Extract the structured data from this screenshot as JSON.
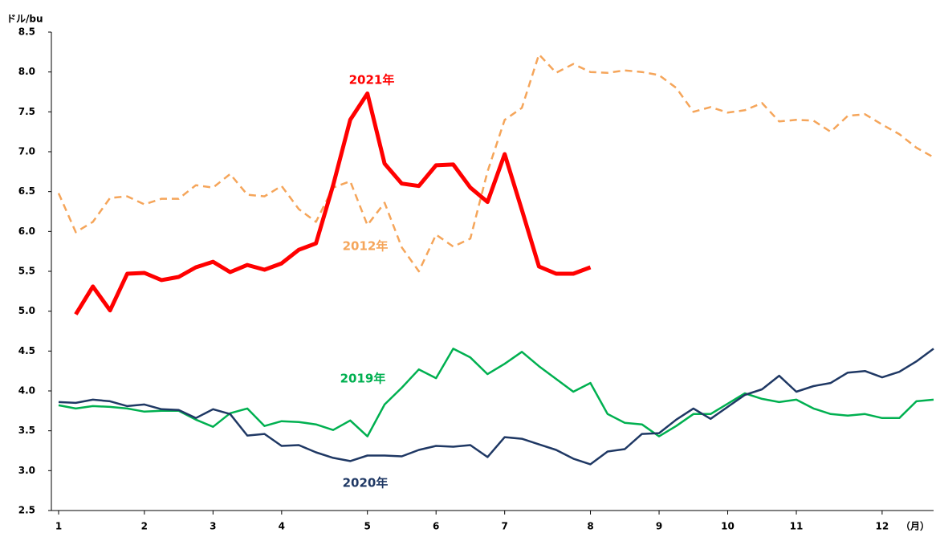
{
  "chart_data": {
    "type": "line",
    "y_label": "ドル/bu",
    "x_label": "（月）",
    "categories": [
      "1",
      null,
      null,
      null,
      null,
      "2",
      null,
      null,
      null,
      "3",
      null,
      null,
      null,
      "4",
      null,
      null,
      null,
      null,
      "5",
      null,
      null,
      null,
      "6",
      null,
      null,
      null,
      "7",
      null,
      null,
      null,
      null,
      "8",
      null,
      null,
      null,
      "9",
      null,
      null,
      null,
      "10",
      null,
      null,
      null,
      "11",
      null,
      null,
      null,
      null,
      "12",
      null,
      null,
      null
    ],
    "ylim": [
      2.5,
      8.5
    ],
    "yticks": [
      {
        "value": 2.5,
        "label": "2.5"
      },
      {
        "value": 3,
        "label": "3.0"
      },
      {
        "value": 3.5,
        "label": "3.5"
      },
      {
        "value": 4,
        "label": "4.0"
      },
      {
        "value": 4.5,
        "label": "4.5"
      },
      {
        "value": 5,
        "label": "5.0"
      },
      {
        "value": 5.5,
        "label": "5.5"
      },
      {
        "value": 6,
        "label": "6.0"
      },
      {
        "value": 6.5,
        "label": "6.5"
      },
      {
        "value": 7,
        "label": "7.0"
      },
      {
        "value": 7.5,
        "label": "7.5"
      },
      {
        "value": 8,
        "label": "8.0"
      },
      {
        "value": 8.5,
        "label": "8.5"
      }
    ],
    "grid": false,
    "series": [
      {
        "name": "2012年",
        "color": "#f5a55a",
        "dashed": true,
        "values": [
          6.48,
          5.99,
          6.12,
          6.42,
          6.44,
          6.34,
          6.41,
          6.41,
          6.58,
          6.55,
          6.72,
          6.46,
          6.44,
          6.57,
          6.28,
          6.12,
          6.55,
          6.63,
          6.08,
          6.36,
          5.8,
          5.5,
          5.96,
          5.81,
          5.91,
          6.75,
          7.4,
          7.55,
          8.22,
          7.99,
          8.1,
          8.0,
          7.99,
          8.02,
          8.0,
          7.96,
          7.8,
          7.5,
          7.56,
          7.49,
          7.52,
          7.61,
          7.38,
          7.4,
          7.39,
          7.25,
          7.45,
          7.47,
          7.34,
          7.22,
          7.05,
          6.93
        ]
      },
      {
        "name": "2019年",
        "color": "#00b050",
        "values": [
          3.82,
          3.78,
          3.81,
          3.8,
          3.78,
          3.74,
          3.75,
          3.75,
          3.64,
          3.55,
          3.72,
          3.78,
          3.56,
          3.62,
          3.61,
          3.58,
          3.51,
          3.63,
          3.43,
          3.83,
          4.04,
          4.27,
          4.16,
          4.53,
          4.42,
          4.21,
          4.34,
          4.49,
          4.31,
          4.15,
          3.99,
          4.1,
          3.71,
          3.6,
          3.58,
          3.43,
          3.56,
          3.71,
          3.71,
          3.84,
          3.97,
          3.9,
          3.86,
          3.89,
          3.78,
          3.71,
          3.69,
          3.71,
          3.66,
          3.66,
          3.87,
          3.89
        ]
      },
      {
        "name": "2020年",
        "color": "#1f3864",
        "values": [
          3.86,
          3.85,
          3.89,
          3.87,
          3.81,
          3.83,
          3.77,
          3.76,
          3.66,
          3.77,
          3.71,
          3.44,
          3.46,
          3.31,
          3.32,
          3.23,
          3.16,
          3.12,
          3.19,
          3.19,
          3.18,
          3.26,
          3.31,
          3.3,
          3.32,
          3.17,
          3.42,
          3.4,
          3.33,
          3.26,
          3.15,
          3.08,
          3.24,
          3.27,
          3.46,
          3.47,
          3.64,
          3.78,
          3.65,
          3.8,
          3.95,
          4.02,
          4.19,
          3.99,
          4.06,
          4.1,
          4.23,
          4.25,
          4.17,
          4.24,
          4.37,
          4.53
        ]
      },
      {
        "name": "2021年",
        "color": "#ff0000",
        "bold": true,
        "values": [
          null,
          4.96,
          5.31,
          5.01,
          5.47,
          5.48,
          5.39,
          5.43,
          5.55,
          5.62,
          5.49,
          5.58,
          5.52,
          5.6,
          5.77,
          5.85,
          6.58,
          7.4,
          7.73,
          6.85,
          6.6,
          6.57,
          6.83,
          6.84,
          6.55,
          6.37,
          6.97,
          6.27,
          5.56,
          5.47,
          5.47,
          5.55,
          null,
          null,
          null,
          null,
          null,
          null,
          null,
          null,
          null,
          null,
          null,
          null,
          null,
          null,
          null,
          null,
          null,
          null,
          null,
          null
        ]
      }
    ]
  }
}
